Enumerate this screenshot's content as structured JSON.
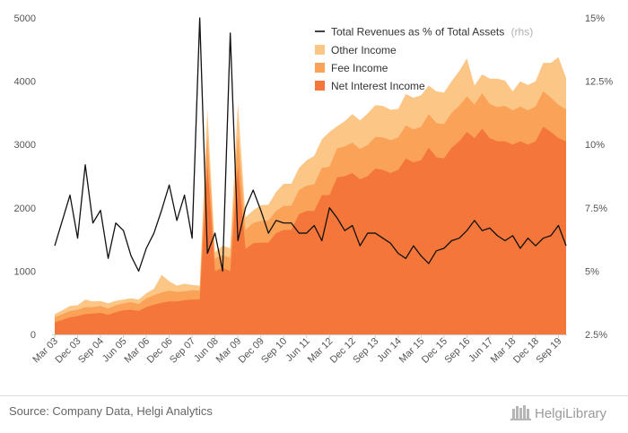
{
  "chart_data": {
    "type": "area",
    "x": [
      "Mar 03",
      "Jun 03",
      "Sep 03",
      "Dec 03",
      "Mar 04",
      "Jun 04",
      "Sep 04",
      "Dec 04",
      "Mar 05",
      "Jun 05",
      "Sep 05",
      "Dec 05",
      "Mar 06",
      "Jun 06",
      "Sep 06",
      "Dec 06",
      "Mar 07",
      "Jun 07",
      "Sep 07",
      "Dec 07",
      "Mar 08",
      "Jun 08",
      "Sep 08",
      "Dec 08",
      "Mar 09",
      "Jun 09",
      "Sep 09",
      "Dec 09",
      "Mar 10",
      "Jun 10",
      "Sep 10",
      "Dec 10",
      "Mar 11",
      "Jun 11",
      "Sep 11",
      "Dec 11",
      "Mar 12",
      "Jun 12",
      "Sep 12",
      "Dec 12",
      "Mar 13",
      "Jun 13",
      "Sep 13",
      "Dec 13",
      "Mar 14",
      "Jun 14",
      "Sep 14",
      "Dec 14",
      "Mar 15",
      "Jun 15",
      "Sep 15",
      "Dec 15",
      "Mar 16",
      "Jun 16",
      "Sep 16",
      "Dec 16",
      "Mar 17",
      "Jun 17",
      "Sep 17",
      "Dec 17",
      "Mar 18",
      "Jun 18",
      "Sep 18",
      "Dec 18",
      "Mar 19",
      "Jun 19",
      "Sep 19",
      "Dec 19"
    ],
    "x_tick_labels": [
      "Mar 03",
      "Dec 03",
      "Sep 04",
      "Jun 05",
      "Mar 06",
      "Dec 06",
      "Sep 07",
      "Jun 08",
      "Mar 09",
      "Dec 09",
      "Sep 10",
      "Jun 11",
      "Mar 12",
      "Dec 12",
      "Sep 13",
      "Jun 14",
      "Mar 15",
      "Dec 15",
      "Sep 16",
      "Jun 17",
      "Mar 18",
      "Dec 18",
      "Sep 19"
    ],
    "series": [
      {
        "name": "Net Interest Income",
        "axis": "left",
        "color": "#f4763a",
        "values": [
          190,
          230,
          270,
          290,
          320,
          330,
          340,
          310,
          350,
          380,
          390,
          370,
          430,
          470,
          500,
          520,
          520,
          540,
          550,
          550,
          2700,
          1000,
          1050,
          1000,
          2650,
          1350,
          1440,
          1450,
          1450,
          1600,
          1650,
          1650,
          1900,
          1950,
          1950,
          2200,
          2200,
          2480,
          2500,
          2550,
          2450,
          2500,
          2620,
          2600,
          2550,
          2600,
          2780,
          2720,
          2750,
          2950,
          2800,
          2780,
          2950,
          3050,
          3200,
          3100,
          3250,
          3100,
          3050,
          3050,
          3000,
          3050,
          3000,
          3050,
          3280,
          3200,
          3100,
          3050
        ]
      },
      {
        "name": "Fee Income",
        "axis": "left",
        "color": "#f9a258",
        "values": [
          80,
          90,
          100,
          100,
          110,
          100,
          110,
          100,
          110,
          110,
          120,
          110,
          140,
          150,
          160,
          170,
          150,
          140,
          150,
          140,
          450,
          200,
          200,
          210,
          500,
          300,
          320,
          340,
          350,
          350,
          380,
          380,
          380,
          400,
          420,
          430,
          450,
          460,
          470,
          480,
          480,
          490,
          500,
          510,
          520,
          510,
          520,
          520,
          530,
          530,
          540,
          540,
          550,
          560,
          560,
          530,
          560,
          540,
          540,
          560,
          540,
          550,
          540,
          550,
          560,
          540,
          530,
          500
        ]
      },
      {
        "name": "Other Income",
        "axis": "left",
        "color": "#fcc686",
        "values": [
          50,
          60,
          80,
          70,
          120,
          90,
          80,
          80,
          70,
          60,
          60,
          70,
          80,
          100,
          280,
          150,
          100,
          120,
          80,
          80,
          400,
          100,
          150,
          150,
          500,
          200,
          200,
          250,
          250,
          300,
          350,
          350,
          350,
          400,
          450,
          450,
          550,
          350,
          400,
          450,
          450,
          500,
          500,
          500,
          480,
          450,
          500,
          500,
          500,
          450,
          500,
          500,
          500,
          550,
          600,
          300,
          300,
          400,
          450,
          400,
          300,
          400,
          400,
          400,
          450,
          550,
          750,
          500
        ]
      },
      {
        "name": "Total Revenues as % of Total Assets",
        "axis": "right",
        "color": "#111111",
        "values": [
          6.0,
          7.0,
          8.0,
          6.3,
          9.2,
          6.9,
          7.4,
          5.5,
          6.9,
          6.6,
          5.6,
          5.0,
          5.9,
          6.5,
          7.4,
          8.4,
          7.0,
          8.0,
          6.3,
          15.0,
          5.7,
          6.5,
          5.0,
          14.4,
          6.2,
          7.5,
          8.2,
          7.4,
          6.5,
          7.0,
          6.9,
          6.9,
          6.5,
          6.5,
          6.8,
          6.2,
          7.5,
          7.1,
          6.6,
          6.8,
          6.0,
          6.5,
          6.5,
          6.3,
          6.1,
          5.7,
          5.5,
          6.0,
          5.6,
          5.3,
          5.8,
          5.9,
          6.2,
          6.3,
          6.6,
          7.0,
          6.6,
          6.7,
          6.4,
          6.2,
          6.4,
          5.9,
          6.3,
          6.0,
          6.3,
          6.4,
          6.8,
          6.0
        ]
      }
    ],
    "stack_order": [
      "Net Interest Income",
      "Fee Income",
      "Other Income"
    ],
    "y_left": {
      "min": 0,
      "max": 5000,
      "ticks": [
        0,
        1000,
        2000,
        3000,
        4000,
        5000
      ],
      "tick_labels": [
        "0",
        "1000",
        "2000",
        "3000",
        "4000",
        "5000"
      ]
    },
    "y_right": {
      "min": 2.5,
      "max": 15,
      "ticks": [
        2.5,
        5,
        7.5,
        10,
        12.5,
        15
      ],
      "tick_labels": [
        "2.5%",
        "5%",
        "7.5%",
        "10%",
        "12.5%",
        "15%"
      ]
    },
    "grid": false,
    "legend_placement": "top-right"
  },
  "legend": {
    "line_label": "Total Revenues as % of Total Assets",
    "line_suffix": "(rhs)",
    "other_label": "Other Income",
    "fee_label": "Fee Income",
    "nii_label": "Net Interest Income"
  },
  "footer": {
    "source": "Source: Company Data, Helgi Analytics",
    "logo": "HelgiLibrary"
  }
}
